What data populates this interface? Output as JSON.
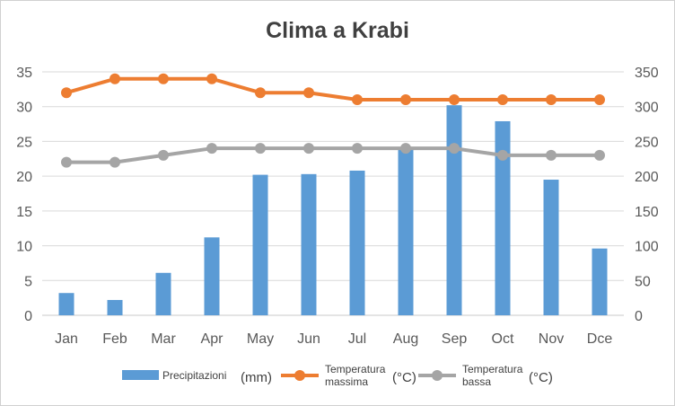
{
  "chart_data": {
    "type": "bar+line",
    "title": "Clima a Krabi",
    "categories": [
      "Jan",
      "Feb",
      "Mar",
      "Apr",
      "May",
      "Jun",
      "Jul",
      "Aug",
      "Sep",
      "Oct",
      "Nov",
      "Dce"
    ],
    "left_axis": {
      "ylim": [
        0,
        35
      ],
      "ticks": [
        "0",
        "5",
        "10",
        "15",
        "20",
        "25",
        "30",
        "35"
      ]
    },
    "right_axis": {
      "ylim": [
        0,
        350
      ],
      "ticks": [
        "0",
        "50",
        "100",
        "150",
        "200",
        "250",
        "300",
        "350"
      ]
    },
    "bars": {
      "name": "Precipitazioni",
      "unit": "(mm)",
      "axis": "right",
      "color": "#5b9bd5",
      "values": [
        32,
        22,
        61,
        112,
        202,
        203,
        208,
        240,
        302,
        279,
        195,
        96
      ]
    },
    "series": [
      {
        "name": "Temperatura massima",
        "name_lines": [
          "Temperatura",
          "massima"
        ],
        "unit": "(°C)",
        "axis": "left",
        "color": "#ed7d31",
        "values": [
          32,
          34,
          34,
          34,
          32,
          32,
          31,
          31,
          31,
          31,
          31,
          31
        ]
      },
      {
        "name": "Temperatura bassa",
        "name_lines": [
          "Temperatura",
          "bassa"
        ],
        "unit": "(°C)",
        "axis": "left",
        "color": "#a5a5a5",
        "values": [
          22,
          22,
          23,
          24,
          24,
          24,
          24,
          24,
          24,
          23,
          23,
          23
        ]
      }
    ],
    "grid": true,
    "legend": "bottom"
  }
}
